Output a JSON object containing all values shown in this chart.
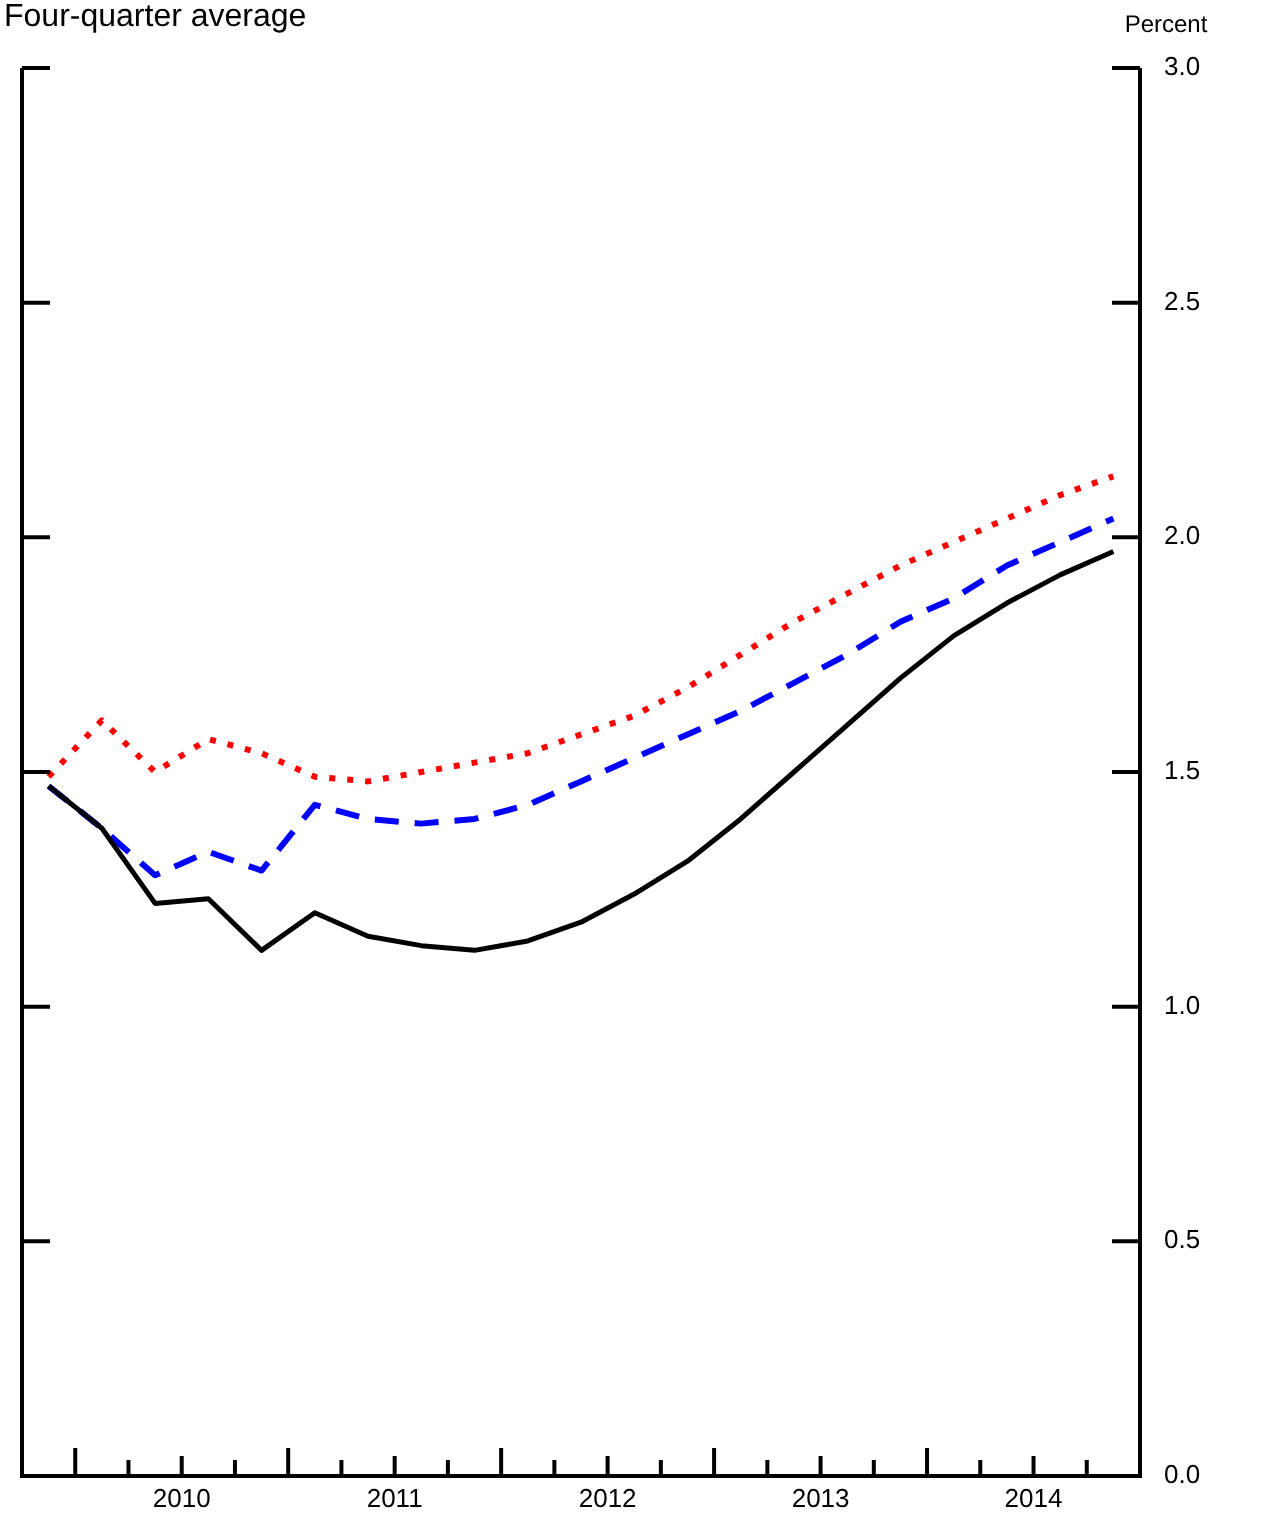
{
  "chart_data": {
    "type": "line",
    "title": "Four-quarter average",
    "ylabel": "Percent",
    "x": [
      2009.875,
      2010.125,
      2010.375,
      2010.625,
      2010.875,
      2011.125,
      2011.375,
      2011.625,
      2011.875,
      2012.125,
      2012.375,
      2012.625,
      2012.875,
      2013.125,
      2013.375,
      2013.625,
      2013.875,
      2014.125,
      2014.375,
      2014.625,
      2014.875
    ],
    "series": [
      {
        "color": "#000000",
        "line_style": "solid",
        "values": [
          1.47,
          1.38,
          1.22,
          1.23,
          1.12,
          1.2,
          1.15,
          1.13,
          1.12,
          1.14,
          1.18,
          1.24,
          1.31,
          1.4,
          1.5,
          1.6,
          1.7,
          1.79,
          1.86,
          1.92,
          1.97
        ]
      },
      {
        "color": "#0000ff",
        "line_style": "dashed",
        "values": [
          1.47,
          1.38,
          1.28,
          1.33,
          1.29,
          1.43,
          1.4,
          1.39,
          1.4,
          1.43,
          1.48,
          1.53,
          1.58,
          1.63,
          1.69,
          1.75,
          1.82,
          1.87,
          1.94,
          1.99,
          2.04
        ]
      },
      {
        "color": "#ff0000",
        "line_style": "dotted",
        "values": [
          1.49,
          1.61,
          1.5,
          1.57,
          1.54,
          1.49,
          1.48,
          1.5,
          1.52,
          1.54,
          1.58,
          1.62,
          1.68,
          1.75,
          1.82,
          1.88,
          1.94,
          1.99,
          2.04,
          2.09,
          2.13
        ]
      }
    ],
    "xlim": [
      2009.75,
      2015
    ],
    "xticks": [
      {
        "value": 2010,
        "label": null
      },
      {
        "value": 2010.25,
        "label": null
      },
      {
        "value": 2010.5,
        "label": "2010"
      },
      {
        "value": 2010.75,
        "label": null
      },
      {
        "value": 2011,
        "label": null
      },
      {
        "value": 2011.25,
        "label": null
      },
      {
        "value": 2011.5,
        "label": "2011"
      },
      {
        "value": 2011.75,
        "label": null
      },
      {
        "value": 2012,
        "label": null
      },
      {
        "value": 2012.25,
        "label": null
      },
      {
        "value": 2012.5,
        "label": "2012"
      },
      {
        "value": 2012.75,
        "label": null
      },
      {
        "value": 2013,
        "label": null
      },
      {
        "value": 2013.25,
        "label": null
      },
      {
        "value": 2013.5,
        "label": "2013"
      },
      {
        "value": 2013.75,
        "label": null
      },
      {
        "value": 2014,
        "label": null
      },
      {
        "value": 2014.25,
        "label": null
      },
      {
        "value": 2014.5,
        "label": "2014"
      },
      {
        "value": 2014.75,
        "label": null
      }
    ],
    "ylim": [
      0,
      3
    ],
    "yticks": [
      {
        "value": 0,
        "label": "0.0"
      },
      {
        "value": 0.5,
        "label": "0.5"
      },
      {
        "value": 1,
        "label": "1.0"
      },
      {
        "value": 1.5,
        "label": "1.5"
      },
      {
        "value": 2,
        "label": "2.0"
      },
      {
        "value": 2.5,
        "label": "2.5"
      },
      {
        "value": 3,
        "label": "3.0"
      }
    ],
    "grid": false,
    "legend": false,
    "marker": "none"
  }
}
